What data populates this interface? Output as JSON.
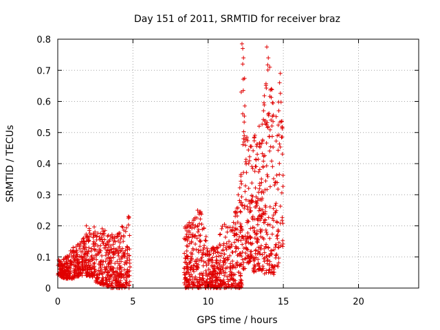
{
  "chart_data": {
    "type": "scatter",
    "title": "Day 151 of 2011, SRMTID for receiver braz",
    "xlabel": "GPS time / hours",
    "ylabel": "SRMTID / TECUs",
    "xlim": [
      0,
      24
    ],
    "ylim": [
      0,
      0.8
    ],
    "xticks": [
      0,
      5,
      10,
      15,
      20
    ],
    "yticks": [
      0,
      0.1,
      0.2,
      0.3,
      0.4,
      0.5,
      0.6,
      0.7,
      0.8
    ],
    "xtick_labels": [
      "0",
      "5",
      "10",
      "15",
      "20"
    ],
    "ytick_labels": [
      "0",
      "0.1",
      "0.2",
      "0.3",
      "0.4",
      "0.5",
      "0.6",
      "0.7",
      "0.8"
    ],
    "grid": true,
    "legend": "none",
    "marker": "plus",
    "color": "#e00000",
    "segments": [
      {
        "x_range": [
          0.0,
          1.0
        ],
        "envelope": [
          [
            0.0,
            0.04,
            0.09
          ],
          [
            0.5,
            0.03,
            0.1
          ],
          [
            1.0,
            0.03,
            0.13
          ]
        ]
      },
      {
        "x_range": [
          1.0,
          2.5
        ],
        "envelope": [
          [
            1.0,
            0.03,
            0.13
          ],
          [
            1.5,
            0.04,
            0.15
          ],
          [
            2.0,
            0.04,
            0.19
          ],
          [
            2.5,
            0.03,
            0.2
          ]
        ]
      },
      {
        "x_range": [
          2.5,
          4.8
        ],
        "envelope": [
          [
            2.5,
            0.02,
            0.18
          ],
          [
            3.0,
            0.01,
            0.2
          ],
          [
            3.5,
            0.0,
            0.17
          ],
          [
            4.0,
            0.0,
            0.18
          ],
          [
            4.5,
            0.0,
            0.22
          ],
          [
            4.8,
            0.0,
            0.23
          ]
        ]
      },
      {
        "x_range": [
          8.4,
          10.0
        ],
        "envelope": [
          [
            8.4,
            0.0,
            0.2
          ],
          [
            9.0,
            0.0,
            0.22
          ],
          [
            9.5,
            0.0,
            0.25
          ],
          [
            10.0,
            0.0,
            0.15
          ]
        ]
      },
      {
        "x_range": [
          10.0,
          12.3
        ],
        "envelope": [
          [
            10.0,
            0.0,
            0.12
          ],
          [
            10.5,
            0.0,
            0.14
          ],
          [
            11.0,
            0.0,
            0.22
          ],
          [
            11.5,
            0.0,
            0.2
          ],
          [
            12.0,
            0.0,
            0.33
          ],
          [
            12.3,
            0.0,
            0.4
          ]
        ]
      },
      {
        "x_range": [
          12.3,
          13.0
        ],
        "envelope": [
          [
            12.3,
            0.05,
            0.78
          ],
          [
            12.7,
            0.08,
            0.48
          ],
          [
            13.0,
            0.1,
            0.45
          ]
        ]
      },
      {
        "x_range": [
          13.0,
          15.0
        ],
        "envelope": [
          [
            13.0,
            0.05,
            0.5
          ],
          [
            13.5,
            0.06,
            0.53
          ],
          [
            13.8,
            0.04,
            0.77
          ],
          [
            14.0,
            0.05,
            0.72
          ],
          [
            14.5,
            0.04,
            0.6
          ],
          [
            14.8,
            0.1,
            0.69
          ],
          [
            15.0,
            0.14,
            0.45
          ]
        ]
      }
    ],
    "notable_points": [
      {
        "x": 12.25,
        "y": 0.785
      },
      {
        "x": 12.3,
        "y": 0.77
      },
      {
        "x": 12.35,
        "y": 0.74
      },
      {
        "x": 12.3,
        "y": 0.72
      },
      {
        "x": 12.2,
        "y": 0.63
      },
      {
        "x": 12.3,
        "y": 0.56
      },
      {
        "x": 12.4,
        "y": 0.49
      },
      {
        "x": 13.9,
        "y": 0.775
      },
      {
        "x": 14.0,
        "y": 0.74
      },
      {
        "x": 14.1,
        "y": 0.71
      },
      {
        "x": 14.2,
        "y": 0.64
      },
      {
        "x": 14.8,
        "y": 0.69
      },
      {
        "x": 14.75,
        "y": 0.66
      },
      {
        "x": 14.7,
        "y": 0.57
      },
      {
        "x": 9.3,
        "y": 0.25
      },
      {
        "x": 4.7,
        "y": 0.23
      },
      {
        "x": 1.9,
        "y": 0.2
      }
    ]
  }
}
